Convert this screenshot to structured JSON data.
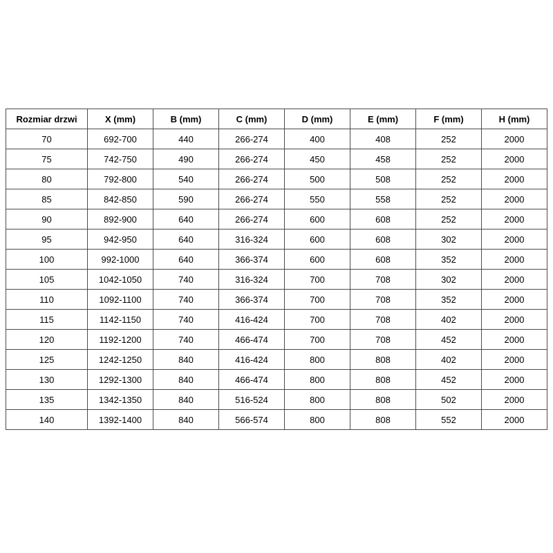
{
  "chart_data": {
    "type": "table",
    "columns": [
      "Rozmiar drzwi",
      "X (mm)",
      "B (mm)",
      "C (mm)",
      "D (mm)",
      "E (mm)",
      "F (mm)",
      "H (mm)"
    ],
    "rows": [
      [
        "70",
        "692-700",
        "440",
        "266-274",
        "400",
        "408",
        "252",
        "2000"
      ],
      [
        "75",
        "742-750",
        "490",
        "266-274",
        "450",
        "458",
        "252",
        "2000"
      ],
      [
        "80",
        "792-800",
        "540",
        "266-274",
        "500",
        "508",
        "252",
        "2000"
      ],
      [
        "85",
        "842-850",
        "590",
        "266-274",
        "550",
        "558",
        "252",
        "2000"
      ],
      [
        "90",
        "892-900",
        "640",
        "266-274",
        "600",
        "608",
        "252",
        "2000"
      ],
      [
        "95",
        "942-950",
        "640",
        "316-324",
        "600",
        "608",
        "302",
        "2000"
      ],
      [
        "100",
        "992-1000",
        "640",
        "366-374",
        "600",
        "608",
        "352",
        "2000"
      ],
      [
        "105",
        "1042-1050",
        "740",
        "316-324",
        "700",
        "708",
        "302",
        "2000"
      ],
      [
        "110",
        "1092-1100",
        "740",
        "366-374",
        "700",
        "708",
        "352",
        "2000"
      ],
      [
        "115",
        "1142-1150",
        "740",
        "416-424",
        "700",
        "708",
        "402",
        "2000"
      ],
      [
        "120",
        "1192-1200",
        "740",
        "466-474",
        "700",
        "708",
        "452",
        "2000"
      ],
      [
        "125",
        "1242-1250",
        "840",
        "416-424",
        "800",
        "808",
        "402",
        "2000"
      ],
      [
        "130",
        "1292-1300",
        "840",
        "466-474",
        "800",
        "808",
        "452",
        "2000"
      ],
      [
        "135",
        "1342-1350",
        "840",
        "516-524",
        "800",
        "808",
        "502",
        "2000"
      ],
      [
        "140",
        "1392-1400",
        "840",
        "566-574",
        "800",
        "808",
        "552",
        "2000"
      ]
    ],
    "title": "",
    "layout": {
      "grid": "all-borders",
      "header_bold": true
    }
  },
  "colors": {
    "border": "#4a4a4a",
    "text": "#000000",
    "background": "#ffffff"
  }
}
